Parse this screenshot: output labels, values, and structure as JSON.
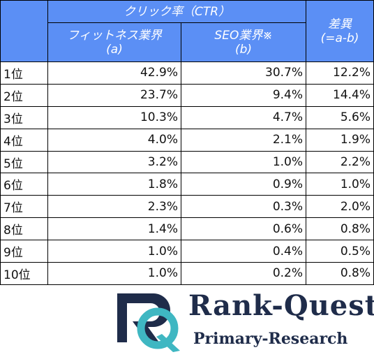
{
  "table": {
    "group_header": "クリック率（CTR）",
    "columns": [
      {
        "label": "フィットネス業界",
        "sub": "(a)"
      },
      {
        "label": "SEO業界※",
        "sub": "(b)"
      },
      {
        "label": "差異",
        "sub": "(=a-b)"
      }
    ],
    "rows": [
      [
        "1位",
        "42.9%",
        "30.7%",
        "12.2%"
      ],
      [
        "2位",
        "23.7%",
        "9.4%",
        "14.4%"
      ],
      [
        "3位",
        "10.3%",
        "4.7%",
        "5.6%"
      ],
      [
        "4位",
        "4.0%",
        "2.1%",
        "1.9%"
      ],
      [
        "5位",
        "3.2%",
        "1.0%",
        "2.2%"
      ],
      [
        "6位",
        "1.8%",
        "0.9%",
        "1.0%"
      ],
      [
        "7位",
        "2.3%",
        "0.3%",
        "2.0%"
      ],
      [
        "8位",
        "1.4%",
        "0.6%",
        "0.8%"
      ],
      [
        "9位",
        "1.0%",
        "0.4%",
        "0.5%"
      ],
      [
        "10位",
        "1.0%",
        "0.2%",
        "0.8%"
      ]
    ]
  },
  "logo": {
    "name": "Rank-Quest",
    "tagline": "Primary-Research"
  }
}
